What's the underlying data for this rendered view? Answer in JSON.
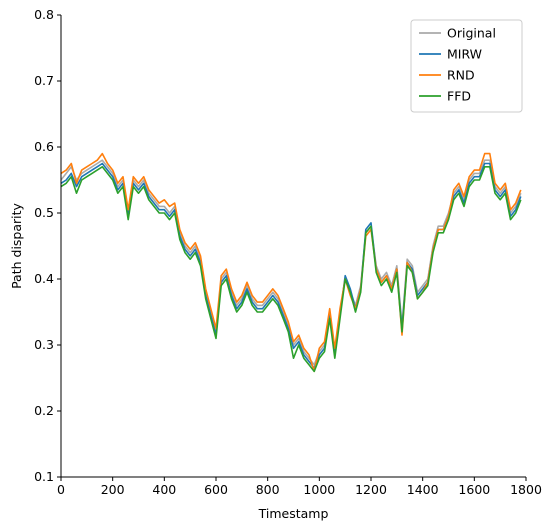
{
  "chart_data": {
    "type": "line",
    "title": "",
    "xlabel": "Timestamp",
    "ylabel": "Path disparity",
    "xlim": [
      0,
      1800
    ],
    "ylim": [
      0.1,
      0.8
    ],
    "xticks": [
      0,
      200,
      400,
      600,
      800,
      1000,
      1200,
      1400,
      1600,
      1800
    ],
    "yticks": [
      0.1,
      0.2,
      0.3,
      0.4,
      0.5,
      0.6,
      0.7,
      0.8
    ],
    "grid": false,
    "legend_position": "top-right",
    "x": [
      0,
      20,
      40,
      60,
      80,
      100,
      120,
      140,
      160,
      180,
      200,
      220,
      240,
      260,
      280,
      300,
      320,
      340,
      360,
      380,
      400,
      420,
      440,
      460,
      480,
      500,
      520,
      540,
      560,
      580,
      600,
      620,
      640,
      660,
      680,
      700,
      720,
      740,
      760,
      780,
      800,
      820,
      840,
      860,
      880,
      900,
      920,
      940,
      960,
      980,
      1000,
      1020,
      1040,
      1060,
      1080,
      1100,
      1120,
      1140,
      1160,
      1180,
      1200,
      1220,
      1240,
      1260,
      1280,
      1300,
      1320,
      1340,
      1360,
      1380,
      1400,
      1420,
      1440,
      1460,
      1480,
      1500,
      1520,
      1540,
      1560,
      1580,
      1600,
      1620,
      1640,
      1660,
      1680,
      1700,
      1720,
      1740,
      1760,
      1780
    ],
    "series": [
      {
        "name": "Original",
        "color": "#aaaaaa",
        "values": [
          0.55,
          0.56,
          0.57,
          0.55,
          0.56,
          0.565,
          0.57,
          0.575,
          0.58,
          0.57,
          0.56,
          0.54,
          0.55,
          0.5,
          0.55,
          0.54,
          0.55,
          0.53,
          0.52,
          0.51,
          0.51,
          0.5,
          0.51,
          0.47,
          0.45,
          0.44,
          0.45,
          0.43,
          0.38,
          0.35,
          0.32,
          0.4,
          0.41,
          0.38,
          0.36,
          0.37,
          0.39,
          0.37,
          0.36,
          0.36,
          0.37,
          0.38,
          0.37,
          0.35,
          0.33,
          0.3,
          0.31,
          0.29,
          0.28,
          0.27,
          0.29,
          0.3,
          0.35,
          0.29,
          0.35,
          0.4,
          0.38,
          0.36,
          0.39,
          0.47,
          0.48,
          0.42,
          0.4,
          0.41,
          0.39,
          0.42,
          0.33,
          0.43,
          0.42,
          0.38,
          0.39,
          0.4,
          0.45,
          0.48,
          0.48,
          0.5,
          0.53,
          0.54,
          0.52,
          0.55,
          0.56,
          0.56,
          0.58,
          0.58,
          0.54,
          0.53,
          0.54,
          0.5,
          0.51,
          0.53
        ]
      },
      {
        "name": "MIRW",
        "color": "#1f77b4",
        "values": [
          0.545,
          0.55,
          0.56,
          0.54,
          0.555,
          0.56,
          0.565,
          0.57,
          0.575,
          0.565,
          0.555,
          0.535,
          0.545,
          0.495,
          0.545,
          0.535,
          0.545,
          0.525,
          0.515,
          0.505,
          0.505,
          0.495,
          0.505,
          0.465,
          0.445,
          0.435,
          0.445,
          0.425,
          0.375,
          0.345,
          0.315,
          0.395,
          0.405,
          0.375,
          0.355,
          0.365,
          0.385,
          0.365,
          0.355,
          0.355,
          0.365,
          0.375,
          0.365,
          0.345,
          0.325,
          0.295,
          0.305,
          0.285,
          0.275,
          0.265,
          0.285,
          0.295,
          0.345,
          0.285,
          0.345,
          0.405,
          0.385,
          0.355,
          0.385,
          0.475,
          0.485,
          0.415,
          0.395,
          0.405,
          0.385,
          0.415,
          0.325,
          0.425,
          0.415,
          0.375,
          0.385,
          0.395,
          0.445,
          0.475,
          0.475,
          0.495,
          0.525,
          0.535,
          0.515,
          0.545,
          0.555,
          0.555,
          0.575,
          0.575,
          0.535,
          0.525,
          0.535,
          0.495,
          0.505,
          0.525
        ]
      },
      {
        "name": "RND",
        "color": "#ff7f0e",
        "values": [
          0.56,
          0.565,
          0.575,
          0.545,
          0.565,
          0.57,
          0.575,
          0.58,
          0.59,
          0.575,
          0.565,
          0.545,
          0.555,
          0.505,
          0.555,
          0.545,
          0.555,
          0.535,
          0.525,
          0.515,
          0.52,
          0.51,
          0.515,
          0.475,
          0.455,
          0.445,
          0.455,
          0.435,
          0.385,
          0.355,
          0.325,
          0.405,
          0.415,
          0.385,
          0.365,
          0.375,
          0.395,
          0.375,
          0.365,
          0.365,
          0.375,
          0.385,
          0.375,
          0.355,
          0.335,
          0.305,
          0.315,
          0.295,
          0.285,
          0.26,
          0.295,
          0.305,
          0.355,
          0.295,
          0.355,
          0.4,
          0.375,
          0.355,
          0.385,
          0.465,
          0.475,
          0.415,
          0.395,
          0.405,
          0.385,
          0.415,
          0.315,
          0.425,
          0.41,
          0.37,
          0.38,
          0.395,
          0.445,
          0.475,
          0.475,
          0.495,
          0.535,
          0.545,
          0.525,
          0.555,
          0.565,
          0.565,
          0.59,
          0.59,
          0.545,
          0.535,
          0.545,
          0.505,
          0.515,
          0.535
        ]
      },
      {
        "name": "FFD",
        "color": "#2ca02c",
        "values": [
          0.54,
          0.545,
          0.555,
          0.53,
          0.55,
          0.555,
          0.56,
          0.565,
          0.57,
          0.56,
          0.55,
          0.53,
          0.54,
          0.49,
          0.54,
          0.53,
          0.54,
          0.52,
          0.51,
          0.5,
          0.5,
          0.49,
          0.5,
          0.46,
          0.44,
          0.43,
          0.44,
          0.42,
          0.37,
          0.34,
          0.31,
          0.39,
          0.4,
          0.37,
          0.35,
          0.36,
          0.38,
          0.36,
          0.35,
          0.35,
          0.36,
          0.37,
          0.36,
          0.34,
          0.32,
          0.28,
          0.3,
          0.28,
          0.27,
          0.26,
          0.28,
          0.29,
          0.34,
          0.28,
          0.34,
          0.4,
          0.38,
          0.35,
          0.38,
          0.47,
          0.48,
          0.41,
          0.39,
          0.4,
          0.38,
          0.41,
          0.32,
          0.42,
          0.41,
          0.37,
          0.38,
          0.39,
          0.44,
          0.47,
          0.47,
          0.49,
          0.52,
          0.53,
          0.51,
          0.54,
          0.55,
          0.55,
          0.57,
          0.57,
          0.53,
          0.52,
          0.53,
          0.49,
          0.5,
          0.52
        ]
      }
    ]
  }
}
